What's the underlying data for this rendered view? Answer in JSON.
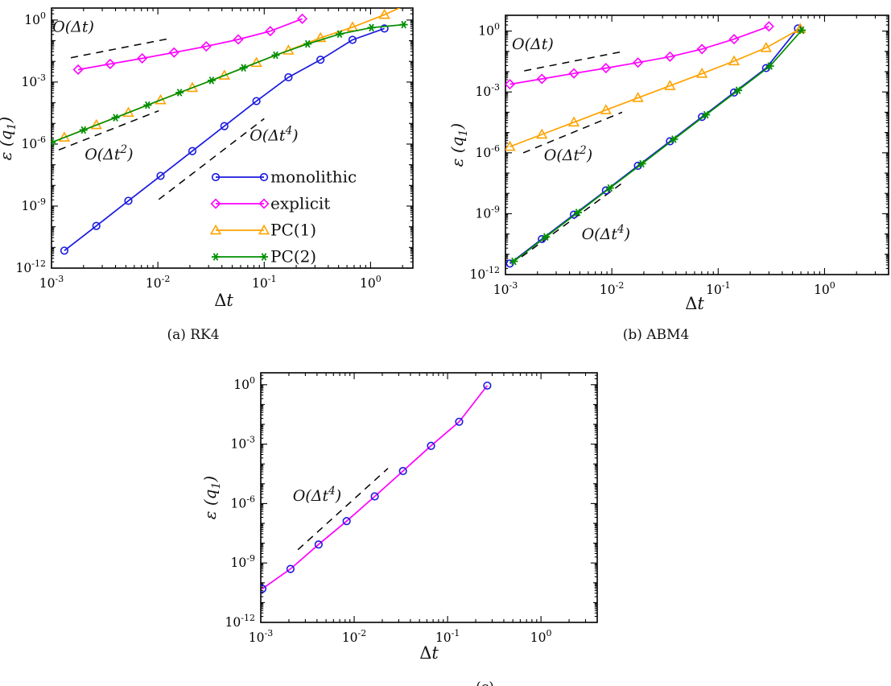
{
  "figure": {
    "background": "#ffffff",
    "text_color": "#000000",
    "guide_color": "#000000"
  },
  "chart_data": [
    {
      "id": "a",
      "type": "line",
      "caption": "(a) RK4",
      "xlabel": "Δt",
      "ylabel": {
        "pre": "ε (q",
        "sub": "1",
        "post": ")"
      },
      "log_x": true,
      "log_y": true,
      "grid": false,
      "legend": true,
      "legend_position": "inside-lower-right",
      "xlim": [
        0.001,
        2.5
      ],
      "ylim": [
        1e-12,
        3.8
      ],
      "x_tick_exps": [
        -3,
        -2,
        -1,
        0
      ],
      "y_tick_exps": [
        0,
        -3,
        -6,
        -9,
        -12
      ],
      "series": [
        {
          "name": "monolithic",
          "color": "#1a1ae0",
          "marker": "circle",
          "x": [
            0.00132,
            0.00264,
            0.00528,
            0.0106,
            0.0211,
            0.0422,
            0.0845,
            0.169,
            0.338,
            0.676,
            1.35
          ],
          "y": [
            7e-12,
            1.1e-10,
            1.8e-09,
            2.9e-08,
            4.6e-07,
            7.4e-06,
            0.00012,
            0.0017,
            0.012,
            0.11,
            0.39
          ]
        },
        {
          "name": "explicit",
          "color": "#ff00ff",
          "marker": "diamond",
          "x": [
            0.00178,
            0.00356,
            0.00712,
            0.0142,
            0.0285,
            0.057,
            0.114,
            0.228
          ],
          "y": [
            0.004,
            0.0075,
            0.014,
            0.027,
            0.053,
            0.115,
            0.29,
            1.15
          ]
        },
        {
          "name": "PC(1)",
          "color": "#ffa200",
          "marker": "triangle",
          "x": [
            0.00132,
            0.00264,
            0.00528,
            0.0106,
            0.0211,
            0.0422,
            0.0845,
            0.169,
            0.338,
            0.676,
            1.35,
            2.7
          ],
          "y": [
            2.1e-06,
            8.4e-06,
            3.3e-05,
            0.000134,
            0.00053,
            0.0021,
            0.0086,
            0.034,
            0.137,
            0.45,
            1.8,
            9.0
          ]
        },
        {
          "name": "PC(2)",
          "color": "#008f00",
          "marker": "asterisk",
          "x": [
            0.001,
            0.002,
            0.004,
            0.008,
            0.016,
            0.032,
            0.064,
            0.128,
            0.256,
            0.512,
            1.02,
            2.05
          ],
          "y": [
            1.2e-06,
            4.8e-06,
            1.9e-05,
            7.7e-05,
            0.00031,
            0.0012,
            0.0049,
            0.02,
            0.07,
            0.21,
            0.43,
            0.6
          ]
        }
      ],
      "guides": [
        {
          "pre": "O(Δt",
          "sup": "",
          "post": ")",
          "x1": 0.00152,
          "y1": 0.015,
          "x2": 0.0121,
          "y2": 0.12,
          "label_x": 0.00102,
          "label_y": 0.27
        },
        {
          "pre": "O(Δt",
          "sup": "2",
          "post": ")",
          "x1": 0.00117,
          "y1": 5.2e-07,
          "x2": 0.0102,
          "y2": 4.1e-05,
          "label_x": 0.00205,
          "label_y": 1.8e-07
        },
        {
          "pre": "O(Δt",
          "sup": "4",
          "post": ")",
          "x1": 0.0102,
          "y1": 2.1e-09,
          "x2": 0.1,
          "y2": 1.7e-05,
          "label_x": 0.073,
          "label_y": 1.5e-06
        }
      ]
    },
    {
      "id": "b",
      "type": "line",
      "caption": "(b) ABM4",
      "xlabel": "Δt",
      "ylabel": {
        "pre": "ε (q",
        "sub": "1",
        "post": ")"
      },
      "log_x": true,
      "log_y": true,
      "grid": false,
      "legend": false,
      "xlim": [
        0.001,
        4.0
      ],
      "ylim": [
        1e-12,
        6.0
      ],
      "x_tick_exps": [
        -3,
        -2,
        -1,
        0
      ],
      "y_tick_exps": [
        0,
        -3,
        -6,
        -9,
        -12
      ],
      "series": [
        {
          "name": "monolithic",
          "color": "#1a1ae0",
          "marker": "circle",
          "x": [
            0.0011,
            0.0022,
            0.0044,
            0.0088,
            0.0176,
            0.0352,
            0.0704,
            0.141,
            0.282,
            0.563
          ],
          "y": [
            3.5e-12,
            5.6e-11,
            9e-10,
            1.4e-08,
            2.3e-07,
            3.7e-06,
            5.9e-05,
            0.00094,
            0.015,
            1.35
          ]
        },
        {
          "name": "explicit",
          "color": "#ff00ff",
          "marker": "diamond",
          "x": [
            0.0011,
            0.0022,
            0.0044,
            0.0088,
            0.0176,
            0.0352,
            0.0704,
            0.141,
            0.3
          ],
          "y": [
            0.0024,
            0.0044,
            0.0082,
            0.015,
            0.028,
            0.055,
            0.13,
            0.4,
            1.7
          ]
        },
        {
          "name": "PC(1)",
          "color": "#ffa200",
          "marker": "triangle",
          "x": [
            0.0011,
            0.0022,
            0.0044,
            0.0088,
            0.0176,
            0.0352,
            0.0704,
            0.141,
            0.282,
            0.59
          ],
          "y": [
            2e-06,
            8e-06,
            3.2e-05,
            0.000128,
            0.00051,
            0.002,
            0.008,
            0.033,
            0.15,
            1.3
          ]
        },
        {
          "name": "PC(2)",
          "color": "#008f00",
          "marker": "asterisk",
          "x": [
            0.0012,
            0.0024,
            0.0048,
            0.0096,
            0.0192,
            0.0384,
            0.0768,
            0.154,
            0.307,
            0.61
          ],
          "y": [
            4.5e-12,
            7.2e-11,
            1.15e-09,
            1.84e-08,
            2.9e-07,
            4.7e-06,
            7.5e-05,
            0.0012,
            0.019,
            1.1
          ]
        }
      ],
      "guides": [
        {
          "pre": "O(Δt",
          "sup": "",
          "post": ")",
          "x1": 0.0015,
          "y1": 0.011,
          "x2": 0.012,
          "y2": 0.093,
          "label_x": 0.00115,
          "label_y": 0.13
        },
        {
          "pre": "O(Δt",
          "sup": "2",
          "post": ")",
          "x1": 0.00147,
          "y1": 1e-06,
          "x2": 0.0125,
          "y2": 0.0001,
          "label_x": 0.0023,
          "label_y": 4.3e-07
        },
        {
          "pre": "O(Δt",
          "sup": "4",
          "post": ")",
          "x1": 0.00142,
          "y1": 7.5e-12,
          "x2": 0.0125,
          "y2": 3.2e-08,
          "label_x": 0.0052,
          "label_y": 5.6e-11
        }
      ]
    },
    {
      "id": "c",
      "type": "line",
      "caption": "(c)",
      "xlabel": "Δt",
      "ylabel": {
        "pre": "ε (q",
        "sub": "1",
        "post": ")"
      },
      "log_x": true,
      "log_y": true,
      "grid": false,
      "legend": false,
      "xlim": [
        0.001,
        4.0
      ],
      "ylim": [
        1e-12,
        4.0
      ],
      "x_tick_exps": [
        -3,
        -2,
        -1,
        0
      ],
      "y_tick_exps": [
        0,
        -3,
        -6,
        -9,
        -12
      ],
      "series": [
        {
          "name": "",
          "color": "#ff00ff",
          "marker": "circle",
          "marker_color": "#1a1ae0",
          "x": [
            0.00104,
            0.00208,
            0.00416,
            0.0083,
            0.0166,
            0.0333,
            0.0665,
            0.133,
            0.266
          ],
          "y": [
            5e-11,
            5e-10,
            8.6e-09,
            1.3e-07,
            2.3e-06,
            4.4e-05,
            0.00082,
            0.0135,
            0.9
          ]
        }
      ],
      "guides": [
        {
          "pre": "O(Δt",
          "sup": "4",
          "post": ")",
          "x1": 0.0025,
          "y1": 4.7e-09,
          "x2": 0.023,
          "y2": 6e-05,
          "label_x": 0.0022,
          "label_y": 1.4e-06
        }
      ]
    }
  ]
}
